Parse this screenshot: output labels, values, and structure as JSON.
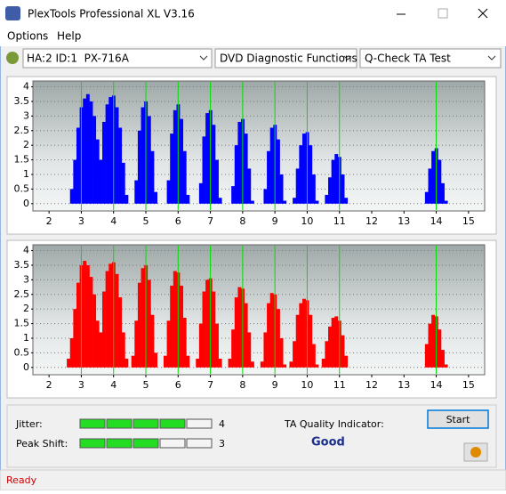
{
  "window": {
    "title": "PlexTools Professional XL V3.16"
  },
  "menu": [
    "Options",
    "Help"
  ],
  "toolbar": {
    "drive": "HA:2 ID:1  PX-716A",
    "function": "DVD Diagnostic Functions",
    "test": "Q-Check TA Test"
  },
  "chart_data": [
    {
      "type": "bar",
      "color": "#0000ff",
      "marker_color": "#00e000",
      "grid": true,
      "xlim": [
        1.5,
        15.5
      ],
      "ylim": [
        -0.25,
        4.2
      ],
      "xticks": [
        2,
        3,
        4,
        5,
        6,
        7,
        8,
        9,
        10,
        11,
        12,
        13,
        14,
        15
      ],
      "yticks": [
        0,
        0.5,
        1,
        1.5,
        2,
        2.5,
        3,
        3.5,
        4
      ],
      "markers": [
        3,
        4,
        5,
        6,
        7,
        8,
        9,
        10,
        11,
        14
      ],
      "x": [
        2.6,
        2.7,
        2.8,
        2.9,
        3.0,
        3.1,
        3.2,
        3.3,
        3.4,
        3.5,
        3.6,
        3.7,
        3.8,
        3.9,
        4.0,
        4.1,
        4.2,
        4.3,
        4.4,
        4.5,
        4.6,
        4.7,
        4.8,
        4.9,
        5.0,
        5.1,
        5.2,
        5.3,
        5.4,
        5.5,
        5.6,
        5.7,
        5.8,
        5.9,
        6.0,
        6.1,
        6.2,
        6.3,
        6.4,
        6.5,
        6.6,
        6.7,
        6.8,
        6.9,
        7.0,
        7.1,
        7.2,
        7.3,
        7.4,
        7.5,
        7.6,
        7.7,
        7.8,
        7.9,
        8.0,
        8.1,
        8.2,
        8.3,
        8.4,
        8.5,
        8.6,
        8.7,
        8.8,
        8.9,
        9.0,
        9.1,
        9.2,
        9.3,
        9.4,
        9.5,
        9.6,
        9.7,
        9.8,
        9.9,
        10.0,
        10.1,
        10.2,
        10.3,
        10.4,
        10.5,
        10.6,
        10.7,
        10.8,
        10.9,
        11.0,
        11.1,
        11.2,
        11.3,
        13.6,
        13.7,
        13.8,
        13.9,
        14.0,
        14.1,
        14.2,
        14.3,
        14.4
      ],
      "values": [
        0,
        0.5,
        1.5,
        2.6,
        3.3,
        3.6,
        3.75,
        3.5,
        3.0,
        2.2,
        1.5,
        2.8,
        3.4,
        3.65,
        3.7,
        3.3,
        2.6,
        1.4,
        0.3,
        0,
        0,
        0.8,
        2.5,
        3.3,
        3.5,
        3.0,
        1.8,
        0.4,
        0,
        0,
        0,
        0.8,
        2.4,
        3.2,
        3.4,
        2.9,
        1.8,
        0.3,
        0,
        0,
        0,
        0.7,
        2.3,
        3.1,
        3.2,
        2.7,
        1.5,
        0.2,
        0,
        0,
        0,
        0.6,
        2.0,
        2.8,
        2.9,
        2.4,
        1.2,
        0.1,
        0,
        0,
        0,
        0.5,
        1.8,
        2.6,
        2.7,
        2.2,
        1.0,
        0.1,
        0,
        0,
        0.2,
        1.2,
        2.0,
        2.4,
        2.45,
        2.0,
        1.0,
        0.1,
        0,
        0,
        0.3,
        0.9,
        1.5,
        1.7,
        1.6,
        1.0,
        0.2,
        0,
        0,
        0.4,
        1.2,
        1.8,
        1.9,
        1.5,
        0.7,
        0.1,
        0
      ]
    },
    {
      "type": "bar",
      "color": "#ff0000",
      "marker_color": "#00e000",
      "grid": true,
      "xlim": [
        1.5,
        15.5
      ],
      "ylim": [
        -0.25,
        4.2
      ],
      "xticks": [
        2,
        3,
        4,
        5,
        6,
        7,
        8,
        9,
        10,
        11,
        12,
        13,
        14,
        15
      ],
      "yticks": [
        0,
        0.5,
        1,
        1.5,
        2,
        2.5,
        3,
        3.5,
        4
      ],
      "markers": [
        3,
        4,
        5,
        6,
        7,
        8,
        9,
        10,
        11,
        14
      ],
      "x": [
        2.6,
        2.7,
        2.8,
        2.9,
        3.0,
        3.1,
        3.2,
        3.3,
        3.4,
        3.5,
        3.6,
        3.7,
        3.8,
        3.9,
        4.0,
        4.1,
        4.2,
        4.3,
        4.4,
        4.5,
        4.6,
        4.7,
        4.8,
        4.9,
        5.0,
        5.1,
        5.2,
        5.3,
        5.4,
        5.5,
        5.6,
        5.7,
        5.8,
        5.9,
        6.0,
        6.1,
        6.2,
        6.3,
        6.4,
        6.5,
        6.6,
        6.7,
        6.8,
        6.9,
        7.0,
        7.1,
        7.2,
        7.3,
        7.4,
        7.5,
        7.6,
        7.7,
        7.8,
        7.9,
        8.0,
        8.1,
        8.2,
        8.3,
        8.4,
        8.5,
        8.6,
        8.7,
        8.8,
        8.9,
        9.0,
        9.1,
        9.2,
        9.3,
        9.4,
        9.5,
        9.6,
        9.7,
        9.8,
        9.9,
        10.0,
        10.1,
        10.2,
        10.3,
        10.4,
        10.5,
        10.6,
        10.7,
        10.8,
        10.9,
        11.0,
        11.1,
        11.2,
        11.3,
        13.6,
        13.7,
        13.8,
        13.9,
        14.0,
        14.1,
        14.2,
        14.3,
        14.4
      ],
      "values": [
        0.3,
        1.0,
        2.0,
        2.9,
        3.5,
        3.65,
        3.5,
        3.1,
        2.5,
        1.6,
        1.2,
        2.6,
        3.3,
        3.55,
        3.6,
        3.2,
        2.4,
        1.2,
        0.3,
        0,
        0.4,
        1.6,
        2.9,
        3.4,
        3.5,
        3.0,
        1.8,
        0.5,
        0,
        0,
        0.4,
        1.6,
        2.8,
        3.3,
        3.25,
        2.8,
        1.7,
        0.4,
        0,
        0,
        0.3,
        1.5,
        2.6,
        3.0,
        3.05,
        2.6,
        1.5,
        0.3,
        0,
        0,
        0.3,
        1.3,
        2.4,
        2.75,
        2.7,
        2.2,
        1.2,
        0.2,
        0,
        0,
        0.2,
        1.2,
        2.2,
        2.55,
        2.5,
        2.0,
        1.0,
        0.1,
        0,
        0.2,
        0.9,
        1.8,
        2.2,
        2.35,
        2.3,
        1.8,
        0.8,
        0.1,
        0,
        0.3,
        0.9,
        1.4,
        1.7,
        1.75,
        1.6,
        1.1,
        0.4,
        0,
        0,
        0.8,
        1.5,
        1.8,
        1.75,
        1.3,
        0.6,
        0.1,
        0
      ]
    }
  ],
  "results": {
    "jitter": {
      "label": "Jitter:",
      "value": 4
    },
    "peak_shift": {
      "label": "Peak Shift:",
      "value": 3
    },
    "ta_label": "TA Quality Indicator:",
    "ta_value": "Good",
    "start": "Start"
  },
  "status": "Ready"
}
